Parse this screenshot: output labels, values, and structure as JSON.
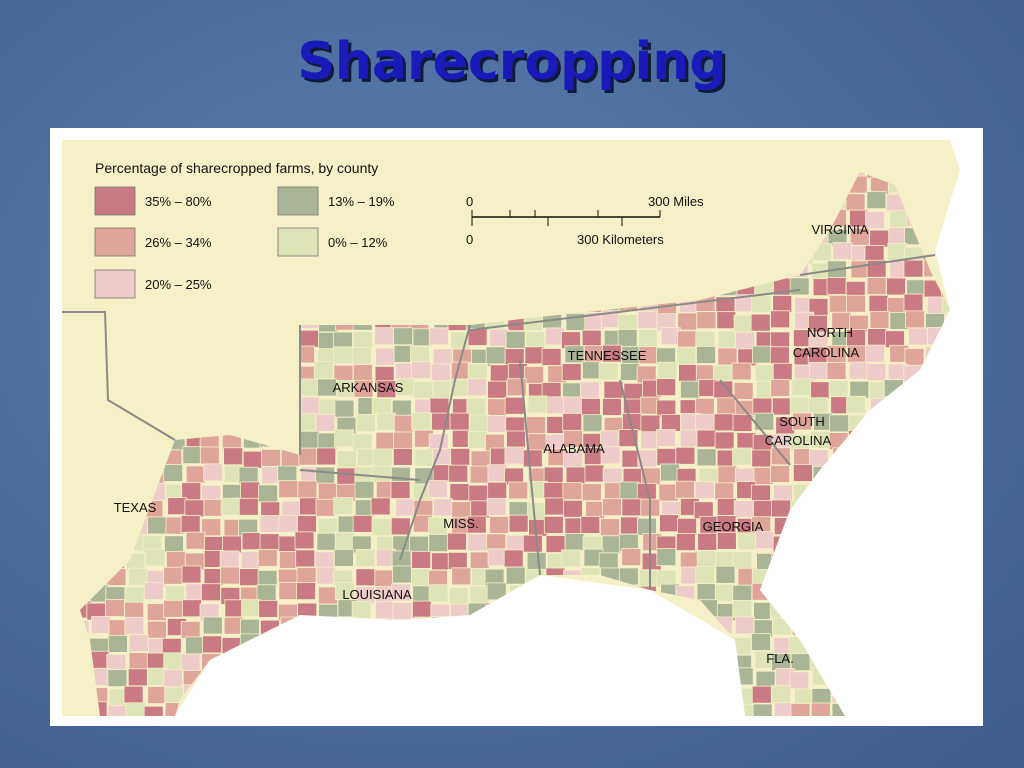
{
  "title": "Sharecropping",
  "legend": {
    "title": "Percentage of sharecropped farms, by county",
    "items": [
      "35% – 80%",
      "26% – 34%",
      "20% – 25%",
      "13% – 19%",
      "0% – 12%"
    ]
  },
  "scale": {
    "miles_zero": "0",
    "miles": "300 Miles",
    "km_zero": "0",
    "km": "300 Kilometers"
  },
  "labels": {
    "virginia": "VIRGINIA",
    "north_carolina": [
      "NORTH",
      "CAROLINA"
    ],
    "tennessee": "TENNESSEE",
    "arkansas": "ARKANSAS",
    "south_carolina": [
      "SOUTH",
      "CAROLINA"
    ],
    "alabama": "ALABAMA",
    "texas": "TEXAS",
    "miss": "MISS.",
    "georgia": "GEORGIA",
    "louisiana": "LOUISIANA",
    "fla": "FLA."
  }
}
